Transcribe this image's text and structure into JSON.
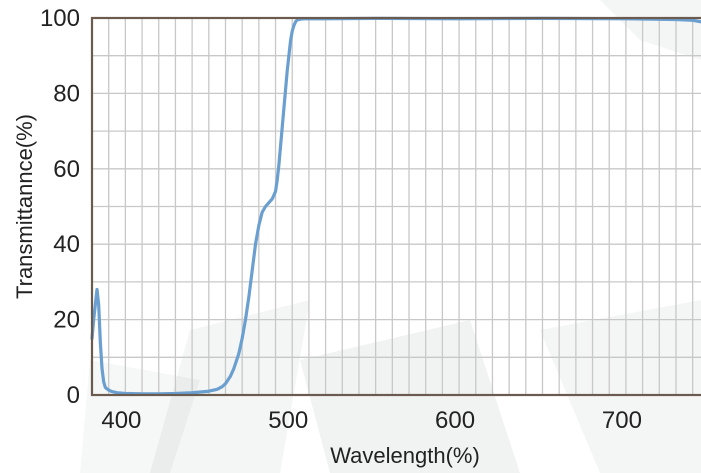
{
  "chart_data": {
    "type": "line",
    "title": "",
    "xlabel": "Wavelength(%)",
    "ylabel": "Transmittannce(%)",
    "xlim": [
      380,
      745
    ],
    "ylim": [
      0,
      100
    ],
    "x_ticks": [
      400,
      500,
      600,
      700
    ],
    "y_ticks": [
      0,
      20,
      40,
      60,
      80,
      100
    ],
    "x_grid_step": 10,
    "y_grid_step": 10,
    "grid": true,
    "legend": "none",
    "colors": {
      "line": "#6a9fd0",
      "frame": "#6b5a4e",
      "grid": "#c8c8c8"
    },
    "series": [
      {
        "x": [
          380,
          381,
          383,
          384,
          385,
          386,
          387,
          388,
          390,
          392,
          395,
          400,
          410,
          420,
          430,
          440,
          450,
          455,
          458,
          460,
          463,
          465,
          468,
          470,
          472,
          474,
          476,
          478,
          480,
          482,
          484,
          486,
          488,
          490,
          491,
          492,
          493,
          494,
          495,
          496,
          497,
          498,
          499,
          500,
          501,
          502,
          503,
          504,
          505,
          507,
          510,
          520,
          550,
          600,
          650,
          700,
          730,
          740,
          745
        ],
        "y": [
          15,
          20,
          28,
          24,
          14,
          7,
          3.5,
          2,
          1.3,
          0.9,
          0.6,
          0.4,
          0.3,
          0.3,
          0.4,
          0.6,
          1.0,
          1.5,
          2.2,
          3,
          5,
          7,
          11,
          15,
          20,
          26,
          33,
          40,
          45,
          48.5,
          50,
          51,
          52,
          54,
          57,
          61,
          66,
          71,
          76,
          81,
          86,
          90,
          94,
          96.5,
          98,
          99,
          99.5,
          99.6,
          99.7,
          99.8,
          99.8,
          99.8,
          99.9,
          99.8,
          99.9,
          99.8,
          99.6,
          99.4,
          99.0
        ]
      }
    ]
  }
}
